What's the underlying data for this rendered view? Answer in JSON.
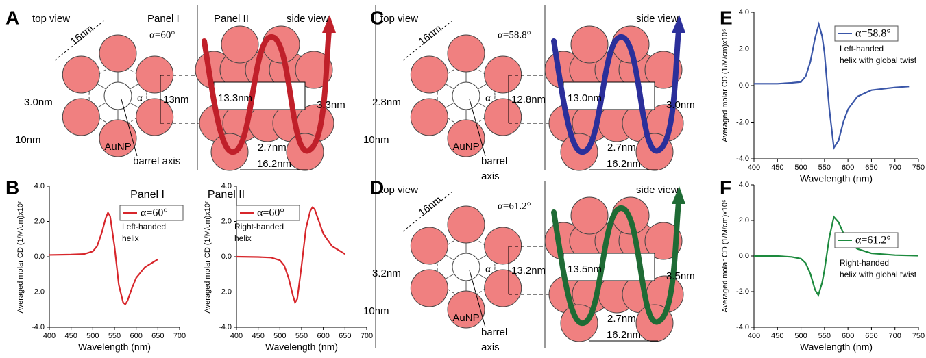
{
  "panel_labels": [
    "A",
    "B",
    "C",
    "D",
    "E",
    "F"
  ],
  "diagrams": [
    {
      "color": "#c0202a",
      "top_view": "top view",
      "panel_one": "Panel I",
      "alpha_label": "α=60°",
      "panel_two": "Panel II",
      "side_view": "side view",
      "diameter": "16nm",
      "gap": "3.0nm",
      "spacing": "13nm",
      "particle": "10nm",
      "aunp": "AuNP",
      "alpha": "α",
      "axis": "barrel axis",
      "length": "13.3nm",
      "offset": "3.3nm",
      "rise": "2.7nm",
      "pitch": "16.2nm"
    },
    {
      "color": "#2b2f9a",
      "top_view": "top view",
      "alpha_label": "α=58.8°",
      "side_view": "side view",
      "diameter": "16nm",
      "gap": "2.8nm",
      "spacing": "12.8nm",
      "particle": "10nm",
      "aunp": "AuNP",
      "alpha": "α",
      "axis": [
        "barrel",
        "axis"
      ],
      "length": "13.0nm",
      "offset": "3.0nm",
      "rise": "2.7nm",
      "pitch": "16.2nm"
    },
    {
      "color": "#1f6b35",
      "top_view": "top view",
      "alpha_label": "α=61.2°",
      "side_view": "side view",
      "diameter": "16nm",
      "gap": "3.2nm",
      "spacing": "13.2nm",
      "particle": "10nm",
      "aunp": "AuNP",
      "alpha": "α",
      "axis": [
        "barrel",
        "axis"
      ],
      "length": "13.5nm",
      "offset": "3.5nm",
      "rise": "2.7nm",
      "pitch": "16.2nm"
    }
  ],
  "chart_data": [
    {
      "type": "line",
      "title": "Panel I",
      "x_label": "Wavelength (nm)",
      "y_label": "Averaged molar CD (1/M/cm)x10⁶",
      "annotation": [
        "Left-handed",
        "helix"
      ],
      "x": [
        400,
        450,
        480,
        500,
        510,
        520,
        530,
        535,
        540,
        550,
        560,
        570,
        575,
        580,
        590,
        600,
        620,
        650
      ],
      "series": [
        {
          "name": "α=60°",
          "color": "#d7262b",
          "values": [
            0.1,
            0.12,
            0.15,
            0.3,
            0.6,
            1.3,
            2.2,
            2.5,
            2.3,
            0.6,
            -1.6,
            -2.6,
            -2.7,
            -2.5,
            -1.8,
            -1.2,
            -0.6,
            -0.15
          ]
        }
      ],
      "xlim": [
        400,
        700
      ],
      "xticks": [
        400,
        450,
        500,
        550,
        600,
        650,
        700
      ],
      "ylim": [
        -4,
        4
      ],
      "yticks": [
        {
          "value": -4,
          "label": "-4.0"
        },
        {
          "value": -2,
          "label": "-2.0"
        },
        {
          "value": 0,
          "label": "0.0"
        },
        {
          "value": 2,
          "label": "2.0"
        },
        {
          "value": 4,
          "label": "4.0"
        }
      ]
    },
    {
      "type": "line",
      "title": "Panel II",
      "x_label": "Wavelength (nm)",
      "y_label": "Averaged molar CD (1/M/cm)x10⁶",
      "annotation": [
        "Right-handed",
        "helix"
      ],
      "x": [
        400,
        450,
        480,
        500,
        510,
        520,
        530,
        535,
        540,
        550,
        560,
        570,
        575,
        580,
        590,
        600,
        620,
        650
      ],
      "series": [
        {
          "name": "α=60°",
          "color": "#d7262b",
          "values": [
            0,
            -0.02,
            -0.05,
            -0.2,
            -0.5,
            -1.2,
            -2.2,
            -2.6,
            -2.4,
            -0.5,
            1.6,
            2.6,
            2.8,
            2.7,
            2.0,
            1.3,
            0.6,
            0.15
          ]
        }
      ],
      "xlim": [
        400,
        700
      ],
      "xticks": [
        400,
        450,
        500,
        550,
        600,
        650,
        700
      ],
      "ylim": [
        -4,
        4
      ],
      "yticks": [
        {
          "value": -4,
          "label": "-4.0"
        },
        {
          "value": -2,
          "label": "-2.0"
        },
        {
          "value": 0,
          "label": "0.0"
        },
        {
          "value": 2,
          "label": "2.0"
        },
        {
          "value": 4,
          "label": "4.0"
        }
      ]
    },
    {
      "type": "line",
      "x_label": "Wavelength (nm)",
      "y_label": "Averaged molar CD (1/M/cm)x10⁶",
      "annotation": [
        "Left-handed",
        "helix with global twist"
      ],
      "x": [
        400,
        450,
        480,
        500,
        510,
        520,
        530,
        538,
        545,
        550,
        560,
        570,
        580,
        590,
        600,
        620,
        650,
        700,
        730
      ],
      "series": [
        {
          "name": "α=58.8°",
          "color": "#3a56a8",
          "values": [
            0.1,
            0.1,
            0.15,
            0.2,
            0.5,
            1.3,
            2.6,
            3.35,
            2.7,
            1.8,
            -1.2,
            -3.4,
            -3.0,
            -2.0,
            -1.3,
            -0.6,
            -0.25,
            -0.1,
            -0.05
          ]
        }
      ],
      "xlim": [
        400,
        750
      ],
      "xticks": [
        400,
        450,
        500,
        550,
        600,
        650,
        700,
        750
      ],
      "ylim": [
        -4,
        4
      ],
      "yticks": [
        {
          "value": -4,
          "label": "-4.0"
        },
        {
          "value": -2,
          "label": "-2.0"
        },
        {
          "value": 0,
          "label": "0.0"
        },
        {
          "value": 2,
          "label": "2.0"
        },
        {
          "value": 4,
          "label": "4.0"
        }
      ]
    },
    {
      "type": "line",
      "x_label": "Wavelength (nm)",
      "y_label": "Averaged molar CD (1/M/cm)x10⁶",
      "annotation": [
        "Right-handed",
        "helix with global twist"
      ],
      "x": [
        400,
        450,
        480,
        500,
        510,
        520,
        530,
        537,
        545,
        550,
        560,
        570,
        580,
        590,
        600,
        620,
        650,
        700,
        750
      ],
      "series": [
        {
          "name": "α=61.2°",
          "color": "#1d8a3e",
          "values": [
            0,
            0,
            -0.05,
            -0.15,
            -0.4,
            -1.0,
            -1.9,
            -2.2,
            -1.5,
            -0.8,
            1.0,
            2.2,
            1.9,
            1.3,
            0.8,
            0.4,
            0.15,
            0.05,
            0.02
          ]
        }
      ],
      "xlim": [
        400,
        750
      ],
      "xticks": [
        400,
        450,
        500,
        550,
        600,
        650,
        700,
        750
      ],
      "ylim": [
        -4,
        4
      ],
      "yticks": [
        {
          "value": -4,
          "label": "-4.0"
        },
        {
          "value": -2,
          "label": "-2.0"
        },
        {
          "value": 0,
          "label": "0.0"
        },
        {
          "value": 2,
          "label": "2.0"
        },
        {
          "value": 4,
          "label": "4.0"
        }
      ]
    }
  ]
}
